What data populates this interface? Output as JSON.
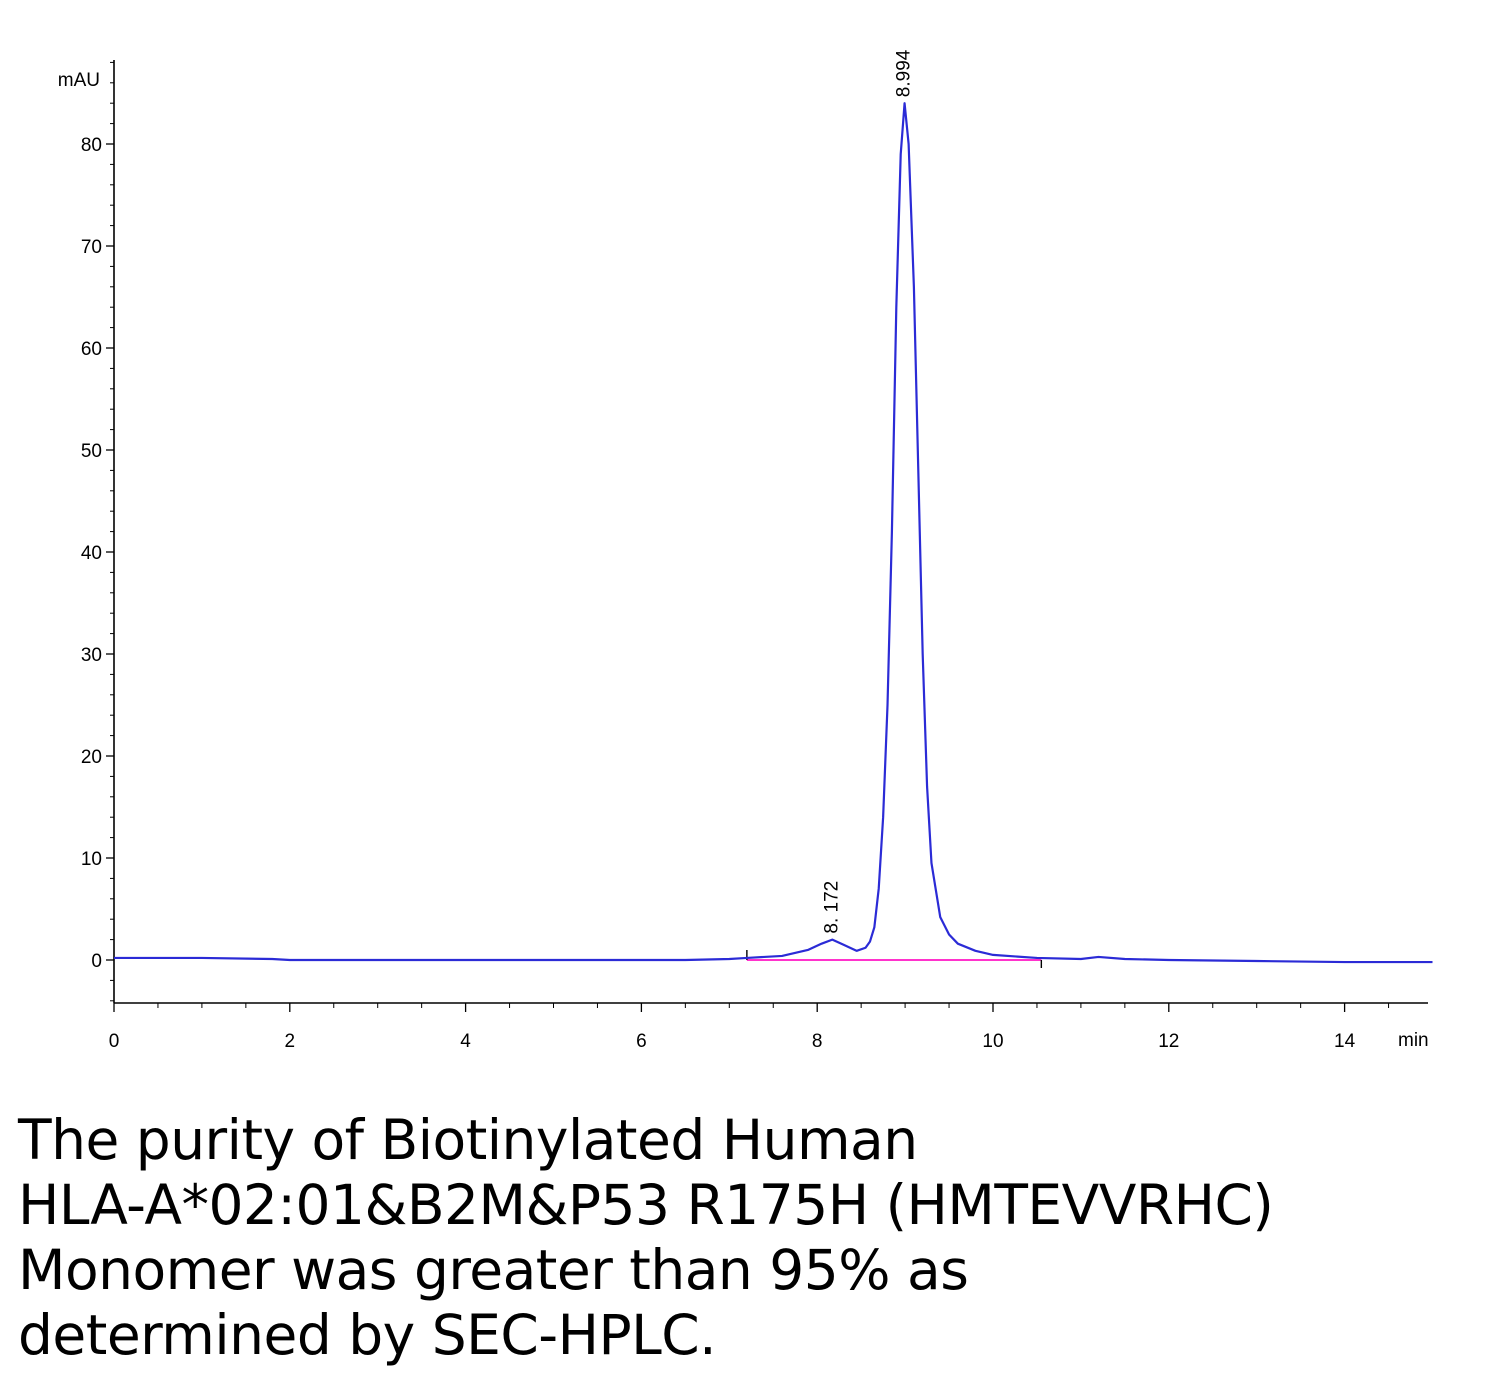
{
  "chart_data": {
    "type": "line",
    "ylabel": "mAU",
    "xlabel": "min",
    "xlim": [
      0,
      15
    ],
    "ylim": [
      -4,
      88
    ],
    "x_ticks": [
      0,
      2,
      4,
      6,
      8,
      10,
      12,
      14
    ],
    "y_ticks": [
      0,
      10,
      20,
      30,
      40,
      50,
      60,
      70,
      80
    ],
    "colors": {
      "trace": "#2b2bd6",
      "baseline": "#ff33cc",
      "axis": "#000000"
    },
    "series": [
      {
        "x": [
          0,
          1,
          1.8,
          2,
          3,
          4,
          5,
          5.7,
          6,
          6.5,
          7,
          7.2,
          7.6,
          7.9,
          8.05,
          8.172,
          8.3,
          8.45,
          8.55,
          8.6,
          8.65,
          8.7,
          8.75,
          8.8,
          8.85,
          8.9,
          8.95,
          8.994,
          9.04,
          9.1,
          9.15,
          9.2,
          9.25,
          9.3,
          9.4,
          9.5,
          9.6,
          9.8,
          10,
          10.5,
          11,
          11.2,
          11.5,
          12,
          13,
          14,
          15
        ],
        "y": [
          0.2,
          0.2,
          0.1,
          0,
          0,
          0,
          0,
          0,
          0,
          0,
          0.1,
          0.2,
          0.4,
          1.0,
          1.6,
          2.0,
          1.5,
          0.9,
          1.2,
          1.8,
          3.2,
          7,
          14,
          25,
          42,
          64,
          79,
          84,
          80,
          66,
          48,
          30,
          17,
          9.5,
          4.2,
          2.5,
          1.6,
          0.9,
          0.5,
          0.2,
          0.1,
          0.3,
          0.1,
          0,
          -0.1,
          -0.2,
          -0.2
        ]
      }
    ],
    "baseline": {
      "x": [
        7.2,
        10.55
      ],
      "y": [
        0,
        0
      ]
    },
    "peaks": [
      {
        "x": 8.172,
        "y": 2.0,
        "label": "8. 172"
      },
      {
        "x": 8.994,
        "y": 84,
        "label": "8.994"
      }
    ]
  },
  "caption": {
    "lines": [
      "The purity of Biotinylated Human",
      "HLA-A*02:01&B2M&P53 R175H (HMTEVVRHC)",
      "Monomer was greater than 95% as",
      "determined by SEC-HPLC."
    ]
  }
}
